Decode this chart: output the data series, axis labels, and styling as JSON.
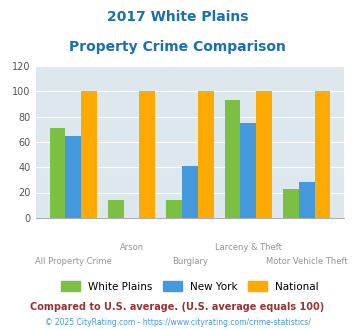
{
  "title_line1": "2017 White Plains",
  "title_line2": "Property Crime Comparison",
  "categories": [
    "All Property Crime",
    "Arson",
    "Burglary",
    "Larceny & Theft",
    "Motor Vehicle Theft"
  ],
  "white_plains": [
    71,
    14,
    14,
    93,
    23
  ],
  "new_york": [
    65,
    0,
    41,
    75,
    28
  ],
  "national": [
    100,
    100,
    100,
    100,
    100
  ],
  "color_wp": "#7bc043",
  "color_ny": "#4499dd",
  "color_nat": "#ffaa00",
  "ylim": [
    0,
    120
  ],
  "yticks": [
    0,
    20,
    40,
    60,
    80,
    100,
    120
  ],
  "legend_labels": [
    "White Plains",
    "New York",
    "National"
  ],
  "footnote1": "Compared to U.S. average. (U.S. average equals 100)",
  "footnote2": "© 2025 CityRating.com - https://www.cityrating.com/crime-statistics/",
  "bg_color": "#dde8ee",
  "title_color": "#1a6faf",
  "xlabel_color_odd": "#9b8ea0",
  "xlabel_color_even": "#9b8ea0",
  "footnote1_color": "#993333",
  "footnote2_color": "#4499dd"
}
